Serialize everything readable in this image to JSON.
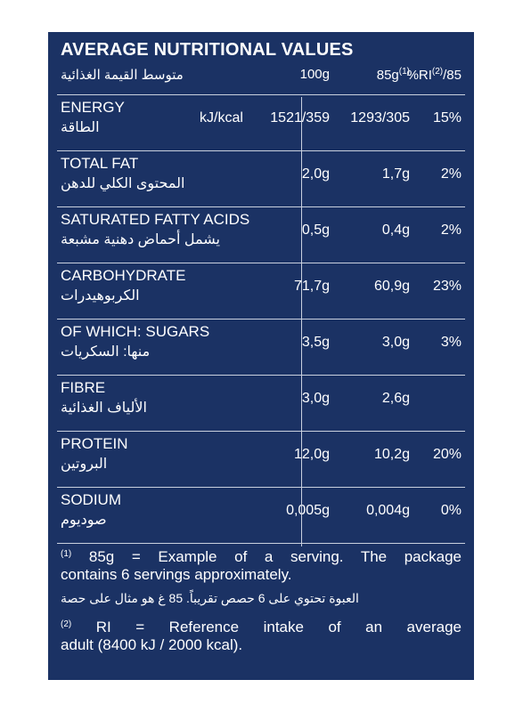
{
  "title": "AVERAGE NUTRITIONAL VALUES",
  "subheader": {
    "arabic": "متوسط القيمة الغذائية",
    "col_100g": "100g",
    "col_85g": "85g",
    "col_85g_note": "(1)",
    "col_ri_pre": "%RI",
    "col_ri_note": "(2)",
    "col_ri_post": "/85"
  },
  "rows": [
    {
      "en": "ENERGY",
      "ar": "الطاقة",
      "unit": "kJ/kcal",
      "v100": "1521/359",
      "v85": "1293/305",
      "ri": "15%"
    },
    {
      "en": "TOTAL FAT",
      "ar": "المحتوى الكلي للدهن",
      "unit": "",
      "v100": "2,0g",
      "v85": "1,7g",
      "ri": "2%"
    },
    {
      "en": "SATURATED FATTY ACIDS",
      "ar": "يشمل أحماض دهنية مشبعة",
      "unit": "",
      "v100": "0,5g",
      "v85": "0,4g",
      "ri": "2%"
    },
    {
      "en": "CARBOHYDRATE",
      "ar": "الكربوهيدرات",
      "unit": "",
      "v100": "71,7g",
      "v85": "60,9g",
      "ri": "23%"
    },
    {
      "en": "OF WHICH: SUGARS",
      "ar": "منها: السكريات",
      "unit": "",
      "v100": "3,5g",
      "v85": "3,0g",
      "ri": "3%"
    },
    {
      "en": "FIBRE",
      "ar": "الألياف الغذائية",
      "unit": "",
      "v100": "3,0g",
      "v85": "2,6g",
      "ri": ""
    },
    {
      "en": "PROTEIN",
      "ar": "البروتين",
      "unit": "",
      "v100": "12,0g",
      "v85": "10,2g",
      "ri": "20%"
    },
    {
      "en": "SODIUM",
      "ar": "صوديوم",
      "unit": "",
      "v100": "0,005g",
      "v85": "0,004g",
      "ri": "0%"
    }
  ],
  "footnotes": {
    "note1_mark": "(1)",
    "note1_line1": "85g = Example of a serving. The package",
    "note1_line2": "contains 6 servings approximately.",
    "note1_arabic": "العبوة تحتوي على 6 حصص تقريباً. 85 غ هو مثال على حصة",
    "note2_mark": "(2)",
    "note2_line1": "RI = Reference intake of an average",
    "note2_line2": "adult (8400 kJ / 2000 kcal)."
  }
}
